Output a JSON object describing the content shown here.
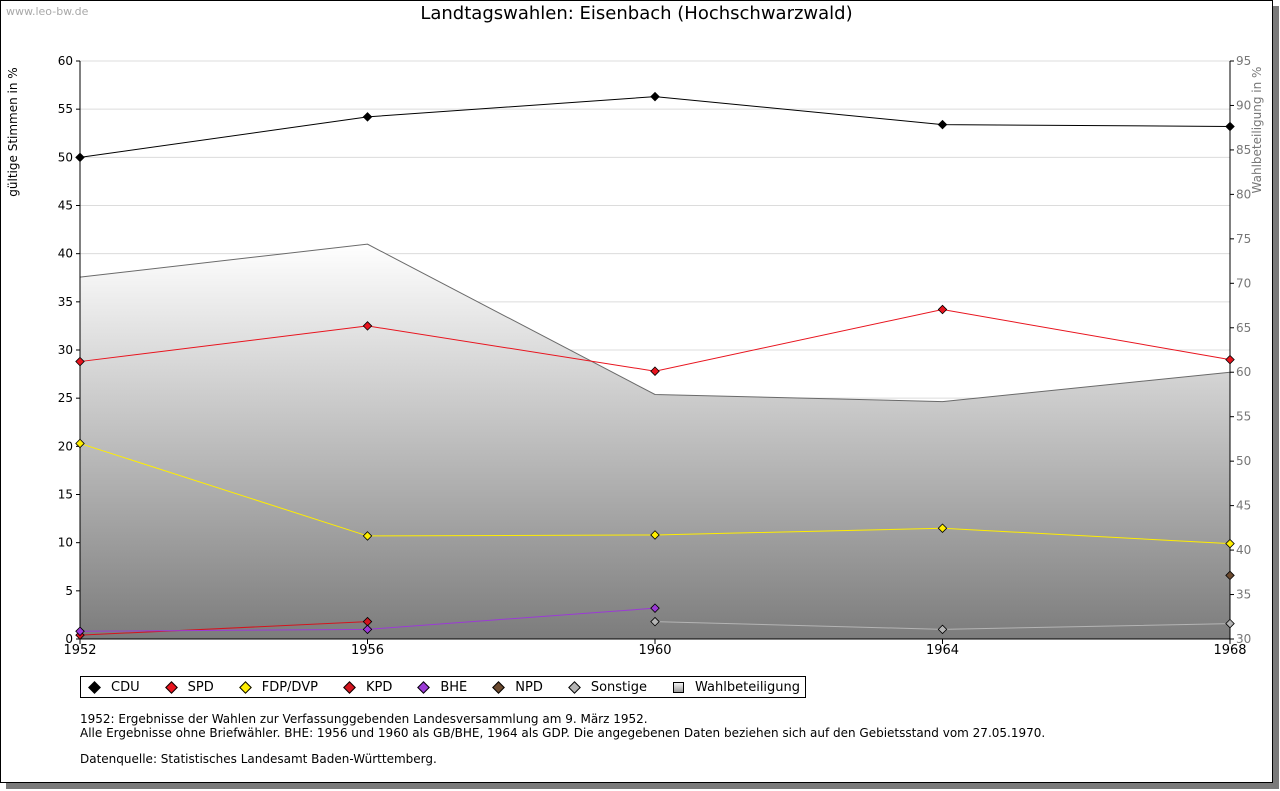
{
  "watermark": "www.leo-bw.de",
  "chart_data": {
    "type": "line",
    "title": "Landtagswahlen: Eisenbach (Hochschwarzwald)",
    "ylabel": "gültige Stimmen in %",
    "y2label": "Wahlbeteiligung in %",
    "x": [
      1952,
      1956,
      1960,
      1964,
      1968
    ],
    "xticks": [
      "1952",
      "1956",
      "1960",
      "1964",
      "1968"
    ],
    "ylim": [
      0,
      60
    ],
    "yticks": [
      "0",
      "5",
      "10",
      "15",
      "20",
      "25",
      "30",
      "35",
      "40",
      "45",
      "50",
      "55",
      "60"
    ],
    "y2lim": [
      30,
      95
    ],
    "y2ticks": [
      "30",
      "35",
      "40",
      "45",
      "50",
      "55",
      "60",
      "65",
      "70",
      "75",
      "80",
      "85",
      "90",
      "95"
    ],
    "grid": true,
    "series": [
      {
        "name": "CDU",
        "color": "#000000",
        "values": [
          50.0,
          54.2,
          56.3,
          53.4,
          53.2
        ]
      },
      {
        "name": "SPD",
        "color": "#e8141e",
        "values": [
          28.8,
          32.5,
          27.8,
          34.2,
          29.0
        ]
      },
      {
        "name": "FDP/DVP",
        "color": "#ffee00",
        "values": [
          20.3,
          10.7,
          10.8,
          11.5,
          9.9
        ]
      },
      {
        "name": "KPD",
        "color": "#d3141e",
        "values": [
          0.4,
          1.8,
          null,
          null,
          null
        ]
      },
      {
        "name": "BHE",
        "color": "#9b3ad6",
        "values": [
          0.8,
          1.0,
          3.2,
          null,
          null
        ]
      },
      {
        "name": "NPD",
        "color": "#6b4a2f",
        "values": [
          null,
          null,
          null,
          null,
          6.6
        ]
      },
      {
        "name": "Sonstige",
        "color": "#b4b4b4",
        "values": [
          null,
          null,
          1.8,
          1.0,
          1.6
        ]
      }
    ],
    "turnout": {
      "name": "Wahlbeteiligung",
      "axis": "right",
      "values": [
        70.7,
        74.4,
        57.5,
        56.7,
        60.0
      ]
    }
  },
  "legend": [
    {
      "label": "CDU",
      "color": "#000000",
      "kind": "diamond"
    },
    {
      "label": "SPD",
      "color": "#e8141e",
      "kind": "diamond"
    },
    {
      "label": "FDP/DVP",
      "color": "#ffee00",
      "kind": "diamond"
    },
    {
      "label": "KPD",
      "color": "#d3141e",
      "kind": "diamond"
    },
    {
      "label": "BHE",
      "color": "#9b3ad6",
      "kind": "diamond"
    },
    {
      "label": "NPD",
      "color": "#6b4a2f",
      "kind": "diamond"
    },
    {
      "label": "Sonstige",
      "color": "#b4b4b4",
      "kind": "diamond"
    },
    {
      "label": "Wahlbeteiligung",
      "color": "#bbbbbb",
      "kind": "square"
    }
  ],
  "notes": {
    "line1": "1952: Ergebnisse der Wahlen zur Verfassunggebenden Landesversammlung am 9. März 1952.",
    "line2": "Alle Ergebnisse ohne Briefwähler. BHE: 1956 und 1960 als GB/BHE, 1964 als GDP. Die angegebenen Daten beziehen sich auf den Gebietsstand vom 27.05.1970.",
    "source": "Datenquelle: Statistisches Landesamt Baden-Württemberg."
  }
}
